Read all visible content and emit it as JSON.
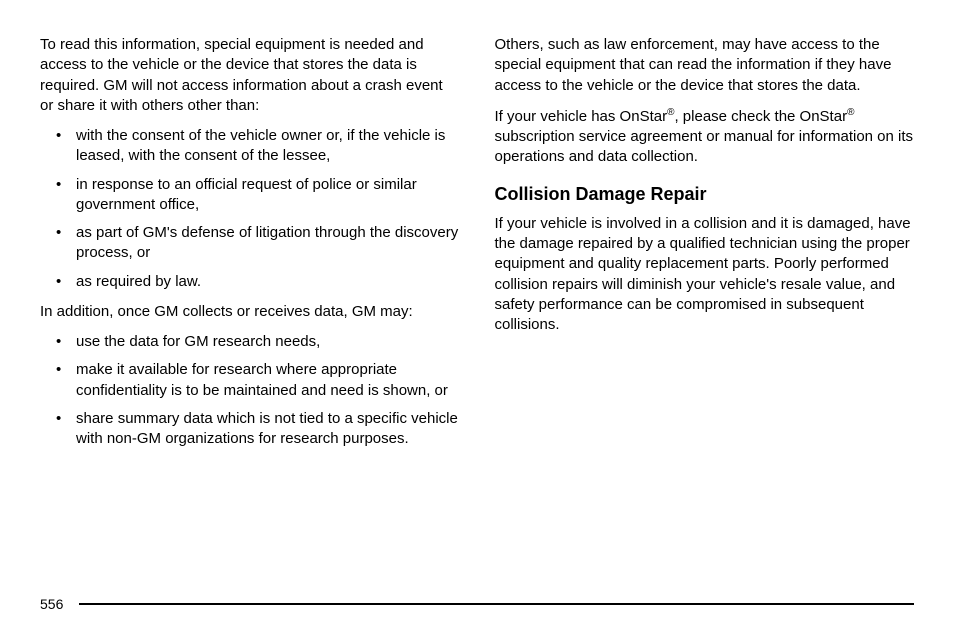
{
  "left": {
    "p1": "To read this information, special equipment is needed and access to the vehicle or the device that stores the data is required. GM will not access information about a crash event or share it with others other than:",
    "list1": [
      "with the consent of the vehicle owner or, if the vehicle is leased, with the consent of the lessee,",
      "in response to an official request of police or similar government office,",
      "as part of GM's defense of litigation through the discovery process, or",
      "as required by law."
    ],
    "p2": "In addition, once GM collects or receives data, GM may:",
    "list2": [
      "use the data for GM research needs,",
      "make it available for research where appropriate confidentiality is to be maintained and need is shown, or",
      "share summary data which is not tied to a specific vehicle with non-GM organizations for research purposes."
    ]
  },
  "right": {
    "p1": "Others, such as law enforcement, may have access to the special equipment that can read the information if they have access to the vehicle or the device that stores the data.",
    "p2a": "If your vehicle has OnStar",
    "p2b": ", please check the OnStar",
    "p2c": " subscription service agreement or manual for information on its operations and data collection.",
    "reg": "®",
    "heading": "Collision Damage Repair",
    "p3": "If your vehicle is involved in a collision and it is damaged, have the damage repaired by a qualified technician using the proper equipment and quality replacement parts. Poorly performed collision repairs will diminish your vehicle's resale value, and safety performance can be compromised in subsequent collisions."
  },
  "pageNumber": "556"
}
